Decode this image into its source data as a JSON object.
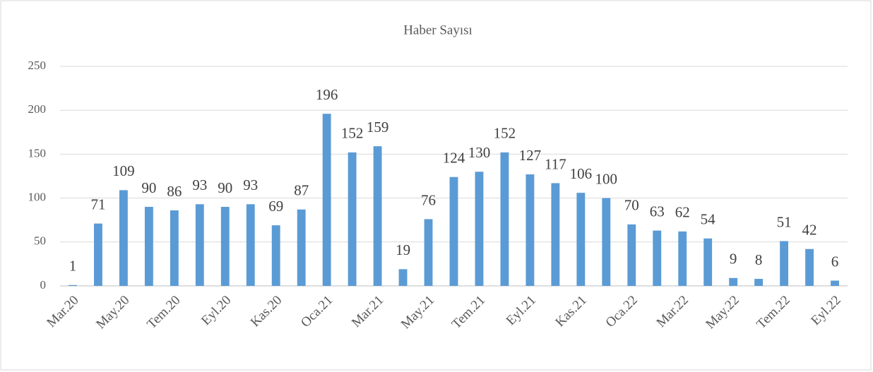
{
  "chart_data": {
    "type": "bar",
    "title": "Haber Sayısı",
    "categories": [
      "Mar.20",
      null,
      "May.20",
      null,
      "Tem.20",
      null,
      "Eyl.20",
      null,
      "Kas.20",
      null,
      "Oca.21",
      null,
      "Mar.21",
      null,
      "May.21",
      null,
      "Tem.21",
      null,
      "Eyl.21",
      null,
      "Kas.21",
      null,
      "Oca.22",
      null,
      "Mar.22",
      null,
      "May.22",
      null,
      "Tem.22",
      null,
      "Eyl.22"
    ],
    "values": [
      1,
      71,
      109,
      90,
      86,
      93,
      90,
      93,
      69,
      87,
      196,
      152,
      159,
      19,
      76,
      124,
      130,
      152,
      127,
      117,
      106,
      100,
      70,
      63,
      62,
      54,
      9,
      8,
      51,
      42,
      6
    ],
    "color": "#5b9bd5",
    "ylim": [
      0,
      250
    ],
    "yticks": [
      0,
      50,
      100,
      150,
      200,
      250
    ],
    "grid": true
  }
}
